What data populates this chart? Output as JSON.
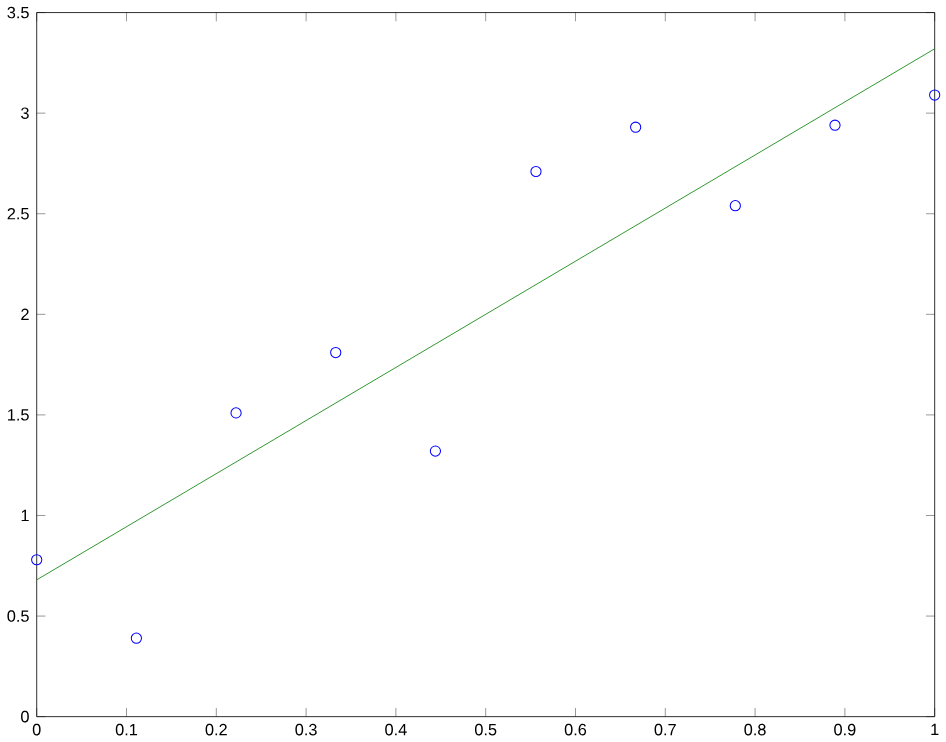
{
  "chart_data": {
    "type": "scatter",
    "xlim": [
      0,
      1
    ],
    "ylim": [
      0,
      3.5
    ],
    "xticks": [
      0,
      0.1,
      0.2,
      0.3,
      0.4,
      0.5,
      0.6,
      0.7,
      0.8,
      0.9,
      1
    ],
    "yticks": [
      0,
      0.5,
      1,
      1.5,
      2,
      2.5,
      3,
      3.5
    ],
    "grid": false,
    "series": [
      {
        "color": "#0000ff",
        "marker": "circle",
        "x": [
          0,
          0.111,
          0.222,
          0.333,
          0.444,
          0.556,
          0.667,
          0.778,
          0.889,
          1
        ],
        "values": [
          0.78,
          0.39,
          1.51,
          1.81,
          1.32,
          2.71,
          2.93,
          2.54,
          2.94,
          3.09
        ]
      },
      {
        "type": "line",
        "color": "#008000",
        "marker": "none",
        "line_style": "solid",
        "x": [
          0,
          1
        ],
        "values": [
          0.68,
          3.32
        ]
      }
    ]
  }
}
